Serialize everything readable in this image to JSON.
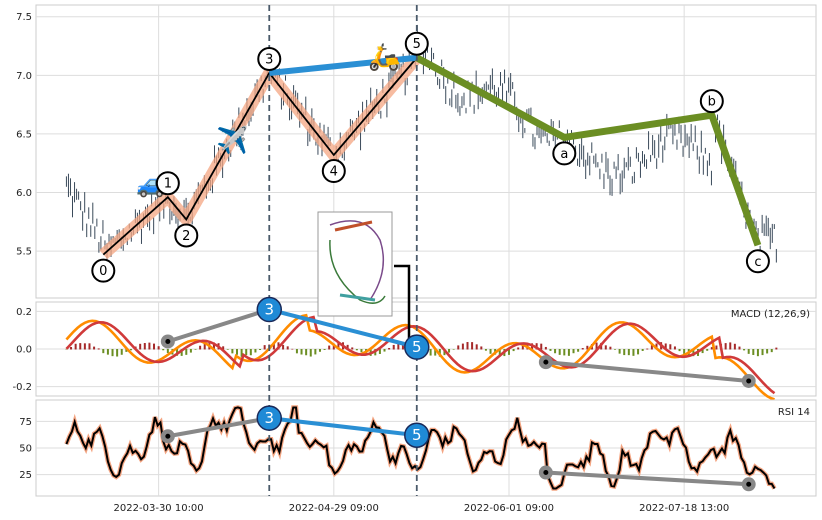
{
  "chart_data": {
    "type": "line",
    "price_panel": {
      "ylim": [
        5.1,
        7.6
      ],
      "yticks": [
        "5.5",
        "6.0",
        "6.5",
        "7.0",
        "7.5"
      ],
      "wave_points": [
        {
          "label": "0",
          "x": 4,
          "y": 5.47
        },
        {
          "label": "1",
          "x": 11,
          "y": 5.96
        },
        {
          "label": "2",
          "x": 13,
          "y": 5.77
        },
        {
          "label": "3",
          "x": 22,
          "y": 7.02
        },
        {
          "label": "4",
          "x": 29,
          "y": 6.32
        },
        {
          "label": "5",
          "x": 38,
          "y": 7.15
        },
        {
          "label": "a",
          "x": 54,
          "y": 6.47
        },
        {
          "label": "b",
          "x": 70,
          "y": 6.66
        },
        {
          "label": "c",
          "x": 75,
          "y": 5.55
        }
      ],
      "icons": [
        {
          "name": "car",
          "glyph": "🚙",
          "x": 9.3,
          "y": 6.08
        },
        {
          "name": "airplane",
          "glyph": "✈️",
          "x": 18.0,
          "y": 6.45
        },
        {
          "name": "scooter",
          "glyph": "🛵",
          "x": 34.5,
          "y": 7.16
        }
      ]
    },
    "macd_panel": {
      "title": "MACD (12,26,9)",
      "ylim": [
        -0.25,
        0.25
      ],
      "yticks": [
        "-0.2",
        "0.0",
        "0.2"
      ],
      "divergences": [
        {
          "x1": 11,
          "y1": 0.04,
          "x2": 22,
          "y2": 0.21,
          "color": "#888888"
        },
        {
          "x1": 22,
          "y1": 0.21,
          "x2": 38,
          "y2": 0.01,
          "color": "#2a8fd4"
        },
        {
          "x1": 52,
          "y1": -0.07,
          "x2": 74,
          "y2": -0.17,
          "color": "#888888"
        }
      ]
    },
    "rsi_panel": {
      "title": "RSI 14",
      "ylim": [
        5,
        95
      ],
      "yticks": [
        "25",
        "50",
        "75"
      ],
      "divergences": [
        {
          "x1": 11,
          "y1": 61,
          "x2": 22,
          "y2": 78,
          "color": "#888888"
        },
        {
          "x1": 22,
          "y1": 78,
          "x2": 38,
          "y2": 62,
          "color": "#2a8fd4"
        },
        {
          "x1": 52,
          "y1": 27,
          "x2": 74,
          "y2": 16,
          "color": "#888888"
        }
      ]
    },
    "badges": [
      {
        "panel": "macd",
        "label": "3",
        "x": 22,
        "y": 0.21
      },
      {
        "panel": "macd",
        "label": "5",
        "x": 38,
        "y": 0.01
      },
      {
        "panel": "rsi",
        "label": "3",
        "x": 22,
        "y": 78
      },
      {
        "panel": "rsi",
        "label": "5",
        "x": 38,
        "y": 62
      }
    ],
    "x_axis": {
      "tick_labels": [
        {
          "label": "2022-03-30 10:00",
          "x": 10
        },
        {
          "label": "2022-04-29 09:00",
          "x": 29
        },
        {
          "label": "2022-06-01 09:00",
          "x": 48
        },
        {
          "label": "2022-07-18 13:00",
          "x": 67
        }
      ],
      "xlim": [
        -3.3,
        81.3
      ]
    },
    "vertical_markers": [
      22,
      38
    ],
    "colors": {
      "impulse": "#000000",
      "impulse_glow": "#f4a582",
      "corrective": "#6b8e23",
      "wave_3_5_link": "#2a8fd4",
      "macd_line": "#ff8c00",
      "signal_line": "#d03a3a",
      "hist_pos": "#a52a2a",
      "hist_neg": "#6b8e23",
      "rsi_line": "#000000",
      "rsi_glow": "#f4a582",
      "badge": "#1f8ad6",
      "grid": "#dddddd"
    }
  }
}
